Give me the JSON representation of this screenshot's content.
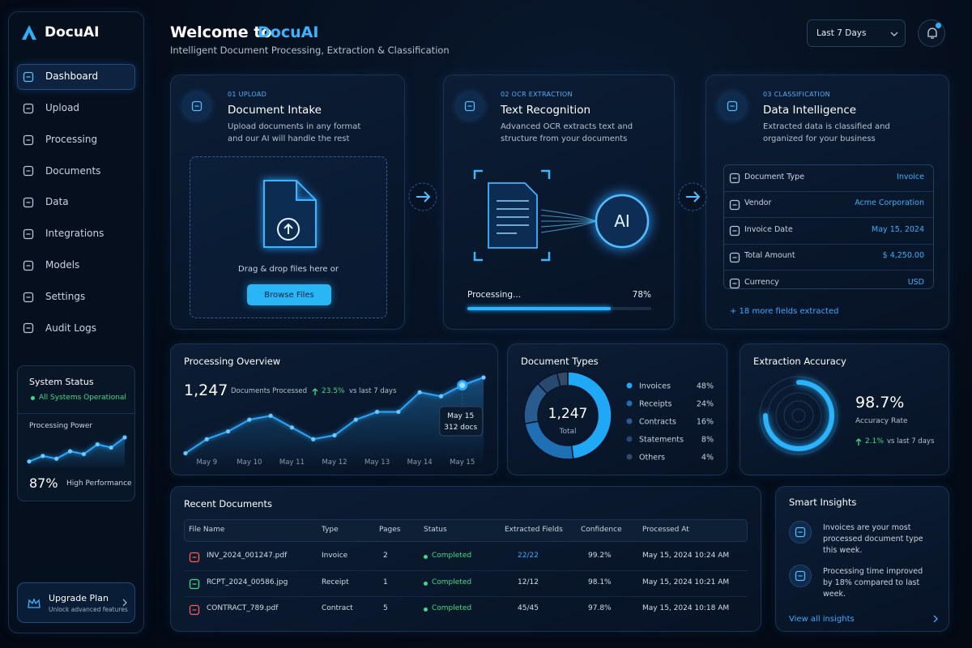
{
  "sidebar": {
    "brand": "DocuAI",
    "nav": [
      "Dashboard",
      "Upload",
      "Processing",
      "Documents",
      "Data",
      "Integrations",
      "Models",
      "Settings",
      "Audit Logs"
    ],
    "system_status": {
      "title": "System Status",
      "state": "All Systems Operational",
      "metric_label": "Processing Power",
      "chart": {
        "type": "line",
        "color": "#2aa8ff",
        "values": [
          18,
          30,
          24,
          40,
          34,
          55,
          48,
          70
        ]
      },
      "metric_value": "87%",
      "metric_note": "High Performance"
    },
    "upgrade": {
      "title": "Upgrade Plan",
      "subtitle": "Unlock advanced features"
    }
  },
  "header": {
    "title": "Welcome to",
    "brand": "DocuAI",
    "subtitle": "Intelligent Document Processing, Extraction & Classification",
    "range": "Last 7 Days"
  },
  "pipeline": [
    {
      "step": "01 UPLOAD",
      "title": "Document Intake",
      "description": "Upload documents in any format and our AI will handle the rest",
      "drop_text": "Drag & drop files here or",
      "button": "Browse Files"
    },
    {
      "step": "02 OCR EXTRACTION",
      "title": "Text Recognition",
      "description": "Advanced OCR extracts text and structure from your documents",
      "badge": "AI",
      "progress": {
        "label": "Processing...",
        "value": 78,
        "value_label": "78%"
      }
    },
    {
      "step": "03 CLASSIFICATION",
      "title": "Data Intelligence",
      "description": "Extracted data is classified and organized for your business",
      "fields": [
        {
          "label": "Document Type",
          "value": "Invoice"
        },
        {
          "label": "Vendor",
          "value": "Acme Corporation"
        },
        {
          "label": "Invoice Date",
          "value": "May 15, 2024"
        },
        {
          "label": "Total Amount",
          "value": "$ 4,250.00"
        },
        {
          "label": "Currency",
          "value": "USD"
        }
      ],
      "more": "+ 18 more fields extracted"
    }
  ],
  "processing_overview": {
    "title": "Processing Overview",
    "total": "1,247",
    "total_label": "Documents Processed",
    "change": "23.5%",
    "change_note": "vs last 7 days",
    "chart": {
      "type": "line",
      "color": "#2aa8ff",
      "categories": [
        null,
        "May 9",
        null,
        "May 10",
        null,
        "May 11",
        null,
        "May 12",
        null,
        "May 13",
        null,
        "May 14",
        null,
        "May 15",
        null
      ],
      "values": [
        51,
        105,
        135,
        180,
        195,
        150,
        105,
        120,
        180,
        210,
        210,
        285,
        270,
        312,
        342
      ],
      "value_labels": [
        null,
        null,
        null,
        null,
        null,
        null,
        null,
        null,
        null,
        null,
        null,
        null,
        null,
        "312 docs",
        null
      ]
    }
  },
  "document_types": {
    "title": "Document Types",
    "chart": {
      "type": "pie",
      "categories": [
        "Invoices",
        "Receipts",
        "Contracts",
        "Statements",
        "Others"
      ],
      "values": [
        48,
        24,
        16,
        8,
        4
      ],
      "value_labels": [
        "48%",
        "24%",
        "16%",
        "8%",
        "4%"
      ],
      "colors": [
        "#1fa8f5",
        "#1f6fb5",
        "#2a5b8e",
        "#27496f",
        "#344b63"
      ],
      "center_value": "1,247",
      "center_label": "Total"
    }
  },
  "extraction_accuracy": {
    "title": "Extraction Accuracy",
    "value": "98.7%",
    "label": "Accuracy Rate",
    "change": "2.1%",
    "change_note": "vs last 7 days"
  },
  "recent_documents": {
    "title": "Recent Documents",
    "table": {
      "columns": [
        "File Name",
        "Type",
        "Pages",
        "Status",
        "Extracted Fields",
        "Confidence",
        "Processed At"
      ],
      "rows": [
        [
          "INV_2024_001247.pdf",
          "Invoice",
          "2",
          "Completed",
          "22/22",
          "99.2%",
          "May 15, 2024 10:24 AM"
        ],
        [
          "RCPT_2024_00586.jpg",
          "Receipt",
          "1",
          "Completed",
          "12/12",
          "98.1%",
          "May 15, 2024 10:21 AM"
        ],
        [
          "CONTRACT_789.pdf",
          "Contract",
          "5",
          "Completed",
          "45/45",
          "97.8%",
          "May 15, 2024 10:18 AM"
        ]
      ]
    }
  },
  "smart_insights": {
    "title": "Smart Insights",
    "items": [
      "Invoices are your most processed document type this week.",
      "Processing time improved by 18% compared to last week."
    ],
    "link": "View all insights"
  }
}
